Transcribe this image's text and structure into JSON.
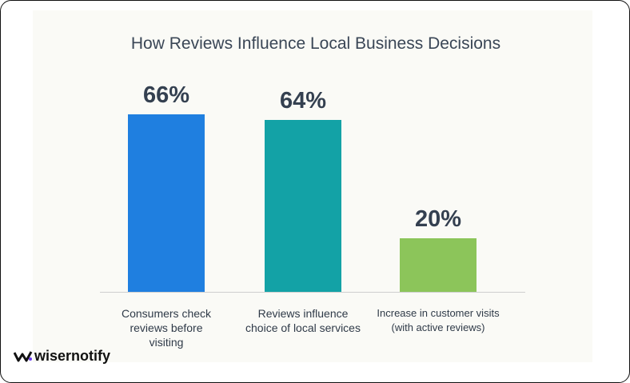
{
  "brand": "wisernotify",
  "chart_data": {
    "type": "bar",
    "title": "How Reviews Influence Local Business Decisions",
    "categories": [
      "Consumers check reviews before visiting",
      "Reviews influence choice of local services",
      "Increase in customer visits (with active reviews)"
    ],
    "values": [
      66,
      64,
      20
    ],
    "value_labels": [
      "66%",
      "64%",
      "20%"
    ],
    "colors": [
      "#1f7fe0",
      "#13a2a6",
      "#8cc55a"
    ]
  }
}
